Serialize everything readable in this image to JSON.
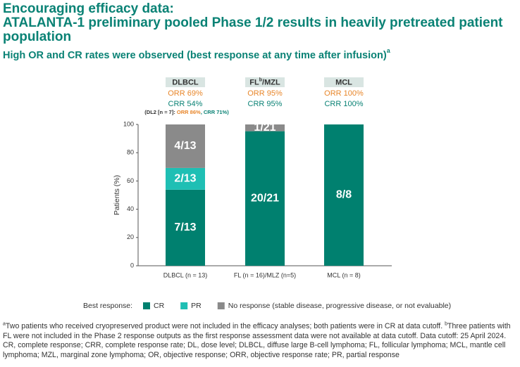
{
  "header": {
    "title_lines": [
      "Encouraging efficacy data:",
      "ATALANTA-1 preliminary pooled Phase 1/2 results in heavily pretreated patient",
      "population"
    ],
    "subtitle": "High OR and CR rates were observed (best response at any time after infusion)",
    "subtitle_sup": "a"
  },
  "chart_data": {
    "type": "stacked_bar",
    "categories": [
      "DLBCL (n = 13)",
      "FL (n = 16)/MLZ (n=5)",
      "MCL (n = 8)"
    ],
    "ylabel": "Patients (%)",
    "ylim": [
      0,
      100
    ],
    "yticks": [
      0,
      20,
      40,
      60,
      80,
      100
    ],
    "series": [
      {
        "name": "CR",
        "color": "#00806f",
        "values": [
          53.8,
          95.2,
          100
        ],
        "value_labels": [
          "7/13",
          "20/21",
          "8/8"
        ]
      },
      {
        "name": "PR",
        "color": "#1fbfb4",
        "values": [
          15.4,
          0,
          0
        ],
        "value_labels": [
          "2/13",
          null,
          null
        ]
      },
      {
        "name": "No response (stable disease, progressive disease, or not evaluable)",
        "color": "#8a8a8a",
        "values": [
          30.8,
          4.8,
          0
        ],
        "value_labels": [
          "4/13",
          "1/21",
          null
        ]
      }
    ],
    "legend_title": "Best response:",
    "group_headers": [
      {
        "label": [
          "DLBCL"
        ],
        "orr": "ORR 69%",
        "crr": "CRR 54%",
        "note": [
          "(DL2 [n = 7]: ",
          "ORR 86%",
          ", CRR 71%)"
        ]
      },
      {
        "label": [
          "FL",
          "b",
          "/MZL"
        ],
        "orr": "ORR 95%",
        "crr": "CRR 95%"
      },
      {
        "label": [
          "MCL"
        ],
        "orr": "ORR 100%",
        "crr": "CRR 100%"
      }
    ]
  },
  "footnote": [
    "a",
    "Two patients who received cryopreserved product were not included in the efficacy analyses; both patients were in CR at data cutoff. ",
    "b",
    "Three patients with FL were not included in the Phase 2 response outputs as the first response assessment data were not available at data cutoff. Data cutoff: 25 April 2024. CR, complete response; CRR, complete response rate; DL, dose level; DLBCL, diffuse large B-cell lymphoma; FL, follicular lymphoma; MCL, mantle cell lymphoma; MZL, marginal zone lymphoma; OR, objective response; ORR, objective response rate; PR, partial response"
  ]
}
